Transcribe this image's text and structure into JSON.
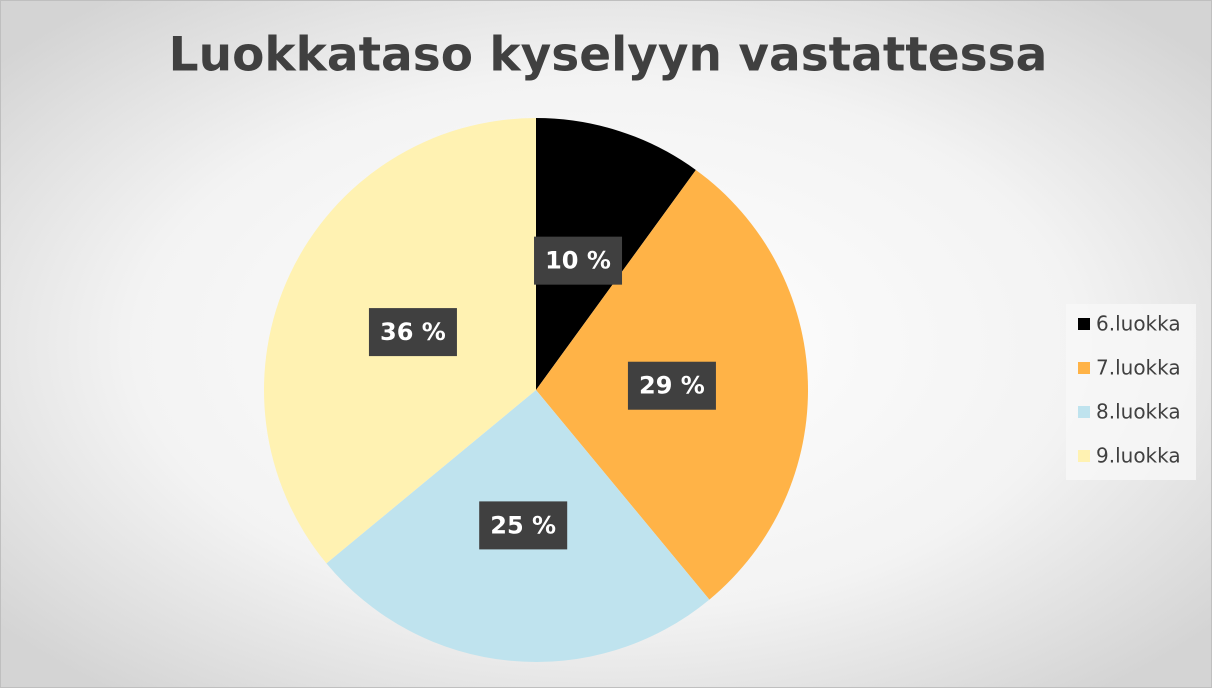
{
  "chart_data": {
    "type": "pie",
    "title": "Luokkataso kyselyyn vastattessa",
    "categories": [
      "6.luokka",
      "7.luokka",
      "8.luokka",
      "9.luokka"
    ],
    "values": [
      10,
      29,
      25,
      36
    ],
    "value_labels": [
      "10 %",
      "29 %",
      "25 %",
      "36 %"
    ],
    "colors": [
      "#000000",
      "#ffb347",
      "#bfe3ee",
      "#fff2b2"
    ],
    "legend": "right"
  }
}
